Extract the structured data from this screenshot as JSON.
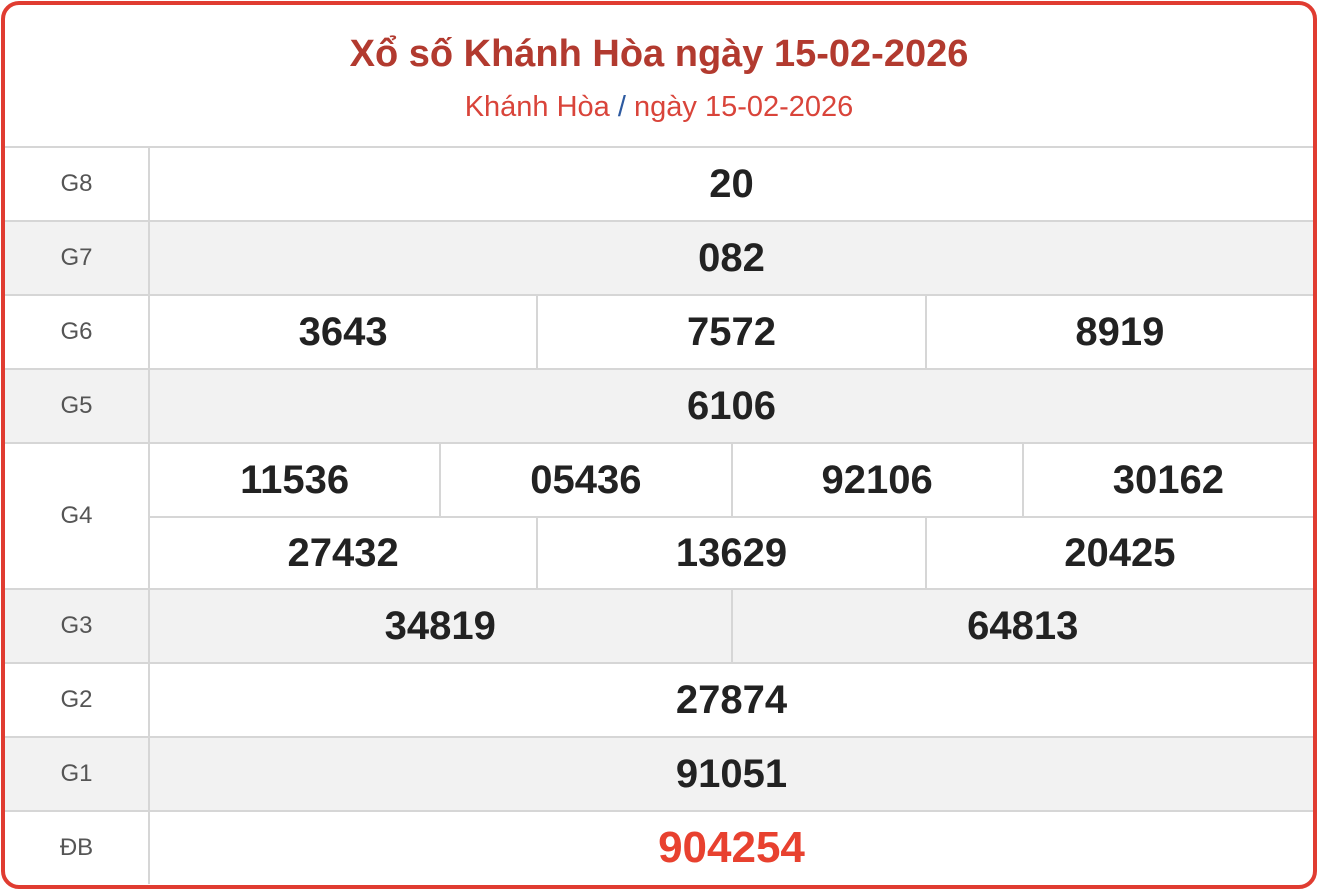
{
  "header": {
    "title": "Xổ số Khánh Hòa ngày 15-02-2026",
    "breadcrumb": {
      "province": "Khánh Hòa",
      "separator": "/",
      "date": "ngày 15-02-2026"
    }
  },
  "colors": {
    "border": "#e03c31",
    "title": "#b23a2f",
    "special_prize": "#e8412f"
  },
  "prizes": [
    {
      "label": "G8",
      "rows": [
        [
          "20"
        ]
      ]
    },
    {
      "label": "G7",
      "rows": [
        [
          "082"
        ]
      ]
    },
    {
      "label": "G6",
      "rows": [
        [
          "3643",
          "7572",
          "8919"
        ]
      ]
    },
    {
      "label": "G5",
      "rows": [
        [
          "6106"
        ]
      ]
    },
    {
      "label": "G4",
      "rows": [
        [
          "11536",
          "05436",
          "92106",
          "30162"
        ],
        [
          "27432",
          "13629",
          "20425"
        ]
      ]
    },
    {
      "label": "G3",
      "rows": [
        [
          "34819",
          "64813"
        ]
      ]
    },
    {
      "label": "G2",
      "rows": [
        [
          "27874"
        ]
      ]
    },
    {
      "label": "G1",
      "rows": [
        [
          "91051"
        ]
      ]
    },
    {
      "label": "ĐB",
      "rows": [
        [
          "904254"
        ]
      ]
    }
  ]
}
